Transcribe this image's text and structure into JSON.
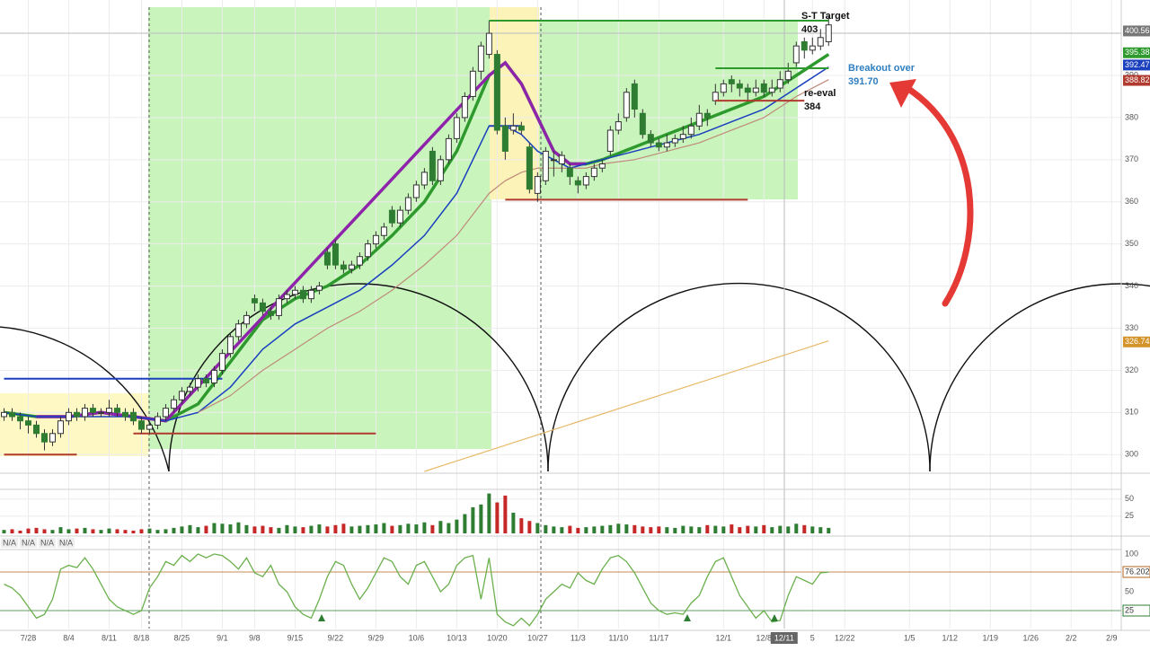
{
  "chart_data": {
    "type": "candlestick",
    "xlim": [
      -0.5,
      138.2
    ],
    "xticks": [
      {
        "value": 3,
        "label": "7/28"
      },
      {
        "value": 8,
        "label": "8/4"
      },
      {
        "value": 13,
        "label": "8/11"
      },
      {
        "value": 17,
        "label": "8/18"
      },
      {
        "value": 22,
        "label": "8/25"
      },
      {
        "value": 27,
        "label": "9/1"
      },
      {
        "value": 31,
        "label": "9/8"
      },
      {
        "value": 36,
        "label": "9/15"
      },
      {
        "value": 41,
        "label": "9/22"
      },
      {
        "value": 46,
        "label": "9/29"
      },
      {
        "value": 51,
        "label": "10/6"
      },
      {
        "value": 56,
        "label": "10/13"
      },
      {
        "value": 61,
        "label": "10/20"
      },
      {
        "value": 66,
        "label": "10/27"
      },
      {
        "value": 71,
        "label": "11/3"
      },
      {
        "value": 76,
        "label": "11/10"
      },
      {
        "value": 81,
        "label": "11/17"
      },
      {
        "value": 89,
        "label": "12/1"
      },
      {
        "value": 94,
        "label": "12/8"
      },
      {
        "value": 100,
        "label": "5"
      },
      {
        "value": 104,
        "label": "12/22"
      },
      {
        "value": 112,
        "label": "1/5"
      },
      {
        "value": 117,
        "label": "1/12"
      },
      {
        "value": 122,
        "label": "1/19"
      },
      {
        "value": 127,
        "label": "1/26"
      },
      {
        "value": 132,
        "label": "2/2"
      },
      {
        "value": 137,
        "label": "2/9"
      }
    ],
    "crosshair": {
      "value": 96.5,
      "label": "12/11"
    },
    "ylim": [
      296,
      406.2
    ],
    "yticks": [
      300,
      310,
      320,
      330,
      340,
      350,
      360,
      370,
      380,
      390,
      400
    ],
    "grid": true,
    "up_color": "#2e7d32",
    "down_color": "#2e7d32",
    "candles": [
      [
        309,
        311,
        308,
        310
      ],
      [
        310,
        311,
        308,
        309
      ],
      [
        309,
        310,
        306,
        308
      ],
      [
        308,
        309,
        305,
        307
      ],
      [
        307,
        308,
        304,
        305
      ],
      [
        305,
        306,
        301,
        303
      ],
      [
        303,
        306,
        302,
        305
      ],
      [
        305,
        309,
        304,
        308
      ],
      [
        308,
        311,
        307,
        310
      ],
      [
        310,
        311,
        308,
        309
      ],
      [
        309,
        312,
        308,
        311
      ],
      [
        311,
        312,
        309,
        310
      ],
      [
        310,
        311,
        309,
        310
      ],
      [
        310,
        313,
        309,
        311
      ],
      [
        311,
        312,
        309,
        310
      ],
      [
        310,
        311,
        308,
        309
      ],
      [
        310,
        311,
        307,
        308
      ],
      [
        308,
        309,
        305,
        306
      ],
      [
        306,
        308,
        305,
        307
      ],
      [
        307,
        310,
        306,
        309
      ],
      [
        309,
        312,
        308,
        311
      ],
      [
        311,
        314,
        310,
        313
      ],
      [
        313,
        316,
        312,
        315
      ],
      [
        315,
        317,
        314,
        316
      ],
      [
        316,
        319,
        315,
        318
      ],
      [
        318,
        319,
        316,
        317
      ],
      [
        317,
        321,
        316,
        320
      ],
      [
        320,
        325,
        319,
        324
      ],
      [
        324,
        329,
        323,
        328
      ],
      [
        328,
        332,
        327,
        331
      ],
      [
        331,
        334,
        330,
        333
      ],
      [
        337,
        338,
        334,
        336
      ],
      [
        336,
        337,
        333,
        334
      ],
      [
        334,
        335,
        332,
        333
      ],
      [
        333,
        338,
        332,
        337
      ],
      [
        337,
        339,
        336,
        338
      ],
      [
        338,
        340,
        337,
        339
      ],
      [
        339,
        340,
        336,
        337
      ],
      [
        337,
        340,
        336,
        339
      ],
      [
        339,
        341,
        338,
        340
      ],
      [
        348,
        349,
        344,
        345
      ],
      [
        350,
        351,
        344,
        345
      ],
      [
        345,
        346,
        343,
        344
      ],
      [
        344,
        346,
        343,
        345
      ],
      [
        345,
        348,
        344,
        347
      ],
      [
        347,
        351,
        346,
        350
      ],
      [
        350,
        353,
        349,
        352
      ],
      [
        352,
        355,
        351,
        354
      ],
      [
        358,
        359,
        354,
        355
      ],
      [
        355,
        359,
        354,
        358
      ],
      [
        358,
        362,
        357,
        361
      ],
      [
        361,
        365,
        360,
        364
      ],
      [
        364,
        368,
        363,
        367
      ],
      [
        372,
        373,
        364,
        365
      ],
      [
        365,
        371,
        364,
        370
      ],
      [
        370,
        376,
        369,
        375
      ],
      [
        375,
        381,
        374,
        380
      ],
      [
        380,
        386,
        379,
        385
      ],
      [
        385,
        392,
        384,
        391
      ],
      [
        391,
        398,
        389,
        397
      ],
      [
        395,
        403,
        394,
        400
      ],
      [
        395,
        396,
        376,
        377
      ],
      [
        378,
        380,
        370,
        372
      ],
      [
        377,
        381,
        376,
        378
      ],
      [
        378,
        379,
        376,
        377
      ],
      [
        373,
        374,
        362,
        363
      ],
      [
        362,
        367,
        360,
        366
      ],
      [
        365,
        373,
        364,
        372
      ],
      [
        370,
        372,
        366,
        370
      ],
      [
        369,
        372,
        367,
        371
      ],
      [
        368,
        369,
        364,
        366
      ],
      [
        365,
        366,
        362,
        364
      ],
      [
        364,
        367,
        363,
        366
      ],
      [
        366,
        369,
        365,
        368
      ],
      [
        368,
        370,
        367,
        369
      ],
      [
        372,
        378,
        371,
        377
      ],
      [
        377,
        381,
        376,
        379
      ],
      [
        380,
        387,
        379,
        386
      ],
      [
        388,
        389,
        380,
        382
      ],
      [
        381,
        382,
        375,
        376
      ],
      [
        376,
        377,
        373,
        374
      ],
      [
        374,
        375,
        372,
        373
      ],
      [
        373,
        376,
        372,
        374
      ],
      [
        374,
        376,
        373,
        375
      ],
      [
        375,
        378,
        374,
        376
      ],
      [
        376,
        380,
        375,
        378
      ],
      [
        378,
        383,
        377,
        381
      ],
      [
        381,
        382,
        378,
        380
      ],
      [
        384,
        388,
        383,
        386
      ],
      [
        386,
        389,
        385,
        388
      ],
      [
        389,
        390,
        386,
        388
      ],
      [
        388,
        389,
        385,
        387
      ],
      [
        387,
        388,
        384,
        386
      ],
      [
        386,
        389,
        385,
        387
      ],
      [
        388,
        389,
        385,
        386
      ],
      [
        386,
        389,
        385,
        387
      ],
      [
        387,
        391,
        386,
        389
      ],
      [
        389,
        393,
        388,
        391
      ],
      [
        393,
        398,
        392,
        397
      ],
      [
        398,
        399,
        394,
        396
      ],
      [
        396,
        399,
        395,
        397
      ],
      [
        397,
        401,
        396,
        399
      ],
      [
        398,
        404,
        397,
        402
      ]
    ],
    "overlays": [
      {
        "color": "#2e9a2e",
        "width": 3.5,
        "x": [
          0,
          4,
          8,
          12,
          16,
          20,
          24,
          28,
          32,
          36,
          40,
          44,
          48,
          52,
          56,
          60,
          62,
          64,
          66,
          68,
          70,
          72,
          74,
          78,
          82,
          86,
          90,
          94,
          98,
          102
        ],
        "values": [
          310,
          309,
          309,
          310,
          309,
          308,
          312,
          322,
          332,
          337,
          340,
          345,
          352,
          360,
          372,
          390,
          393,
          388,
          380,
          372,
          369,
          369,
          370,
          373,
          376,
          379,
          382,
          385,
          390,
          395
        ]
      },
      {
        "color": "#8e24aa",
        "width": 3.5,
        "x": [
          4,
          8,
          12,
          16,
          20,
          60,
          62,
          64,
          66,
          68,
          70,
          72
        ],
        "values": [
          309,
          309,
          310,
          309,
          308,
          390,
          393,
          388,
          380,
          372,
          369,
          369
        ]
      },
      {
        "color": "#1a3fbf",
        "width": 1.5,
        "x": [
          0,
          4,
          8,
          12,
          16,
          20,
          24,
          28,
          32,
          36,
          40,
          44,
          48,
          52,
          56,
          60,
          62,
          64,
          66,
          68,
          70,
          72,
          74,
          78,
          82,
          86,
          90,
          94,
          98,
          102
        ],
        "values": [
          310,
          309,
          309,
          309,
          309,
          308,
          310,
          316,
          325,
          331,
          335,
          339,
          345,
          352,
          362,
          378,
          378,
          376,
          372,
          370,
          368,
          369,
          370,
          372,
          374,
          376,
          379,
          382,
          387,
          392
        ]
      },
      {
        "color": "#c08a7a",
        "width": 1.2,
        "x": [
          24,
          28,
          32,
          36,
          40,
          44,
          48,
          52,
          56,
          60,
          62,
          64,
          66,
          68,
          70,
          72,
          74,
          78,
          82,
          86,
          90,
          94,
          98,
          102
        ],
        "values": [
          310,
          314,
          320,
          325,
          330,
          334,
          339,
          345,
          352,
          362,
          365,
          367,
          368,
          368,
          368,
          368,
          369,
          370,
          372,
          374,
          377,
          380,
          385,
          389
        ]
      },
      {
        "color": "#e8b96a",
        "width": 1.2,
        "x": [
          52,
          102
        ],
        "values": [
          296,
          327
        ]
      }
    ],
    "levels": [
      {
        "value": 360.5,
        "x": [
          62,
          92
        ],
        "color": "#b03a2e"
      },
      {
        "value": 305,
        "x": [
          16,
          46
        ],
        "color": "#b03a2e"
      },
      {
        "value": 300,
        "x": [
          0,
          9
        ],
        "color": "#b03a2e"
      },
      {
        "value": 318,
        "x": [
          0,
          27
        ],
        "color": "#1a3fbf"
      },
      {
        "value": 378,
        "x": [
          60,
          64
        ],
        "color": "#1a3fbf"
      }
    ],
    "annotations": [
      {
        "label": "S-T Target",
        "value": 403,
        "x": [
          60,
          102
        ],
        "color": "#2e9a2e"
      },
      {
        "label": "re-eval",
        "value": 384,
        "x": [
          88,
          99
        ],
        "color": "#b03a2e"
      },
      {
        "label": "Breakout over",
        "value": {
          "value": 391.7,
          "label": "391.70"
        },
        "x": [
          88,
          102
        ],
        "color": "#2e9a2e"
      }
    ],
    "price_tags": [
      {
        "value": 400.56,
        "color": "#777777"
      },
      {
        "value": 395.38,
        "color": "#2e9a2e"
      },
      {
        "value": 392.47,
        "color": "#1a3fbf"
      },
      {
        "value": 388.82,
        "color": "#b03a2e"
      },
      {
        "value": 326.74,
        "color": "#d4942a"
      }
    ],
    "volume": {
      "ylim": [
        0,
        64
      ],
      "yticks": [
        25,
        50
      ],
      "up_color": "#2e7d32",
      "down_color": "#c62828",
      "values": [
        5,
        6,
        4,
        7,
        8,
        6,
        5,
        9,
        6,
        7,
        8,
        6,
        5,
        7,
        6,
        5,
        4,
        6,
        7,
        5,
        6,
        8,
        10,
        12,
        9,
        11,
        15,
        14,
        13,
        16,
        12,
        10,
        11,
        9,
        8,
        12,
        10,
        9,
        11,
        13,
        10,
        12,
        14,
        10,
        11,
        12,
        13,
        15,
        11,
        12,
        14,
        13,
        16,
        12,
        18,
        15,
        20,
        28,
        38,
        42,
        58,
        45,
        55,
        30,
        22,
        18,
        15,
        12,
        10,
        9,
        11,
        8,
        9,
        10,
        11,
        12,
        14,
        13,
        12,
        10,
        9,
        10,
        9,
        8,
        11,
        10,
        9,
        12,
        11,
        10,
        13,
        9,
        11,
        10,
        12,
        9,
        11,
        10,
        14,
        12,
        10,
        9,
        8
      ]
    },
    "na_labels": [
      "N/A",
      "N/A",
      "N/A",
      "N/A"
    ],
    "stochastic": {
      "ylim": [
        0,
        100
      ],
      "yticks": [
        25,
        50,
        75,
        100
      ],
      "color": "#6ab04c",
      "values": [
        60,
        55,
        45,
        30,
        15,
        20,
        40,
        80,
        85,
        82,
        95,
        80,
        60,
        40,
        30,
        25,
        20,
        25,
        55,
        70,
        90,
        85,
        98,
        90,
        100,
        95,
        100,
        98,
        90,
        80,
        95,
        75,
        70,
        85,
        60,
        50,
        30,
        20,
        15,
        40,
        70,
        90,
        85,
        60,
        40,
        55,
        75,
        95,
        90,
        70,
        60,
        85,
        90,
        70,
        50,
        60,
        85,
        95,
        98,
        40,
        95,
        20,
        10,
        5,
        15,
        5,
        20,
        40,
        50,
        60,
        55,
        75,
        65,
        60,
        80,
        95,
        98,
        90,
        75,
        55,
        35,
        25,
        20,
        22,
        20,
        35,
        45,
        70,
        90,
        95,
        70,
        45,
        30,
        15,
        25,
        10,
        12,
        45,
        70,
        65,
        60,
        75,
        76
      ],
      "refs": [
        {
          "value": 76.202,
          "color": "#b5651d"
        },
        {
          "value": 25,
          "color": "#2e7d32"
        }
      ]
    }
  }
}
